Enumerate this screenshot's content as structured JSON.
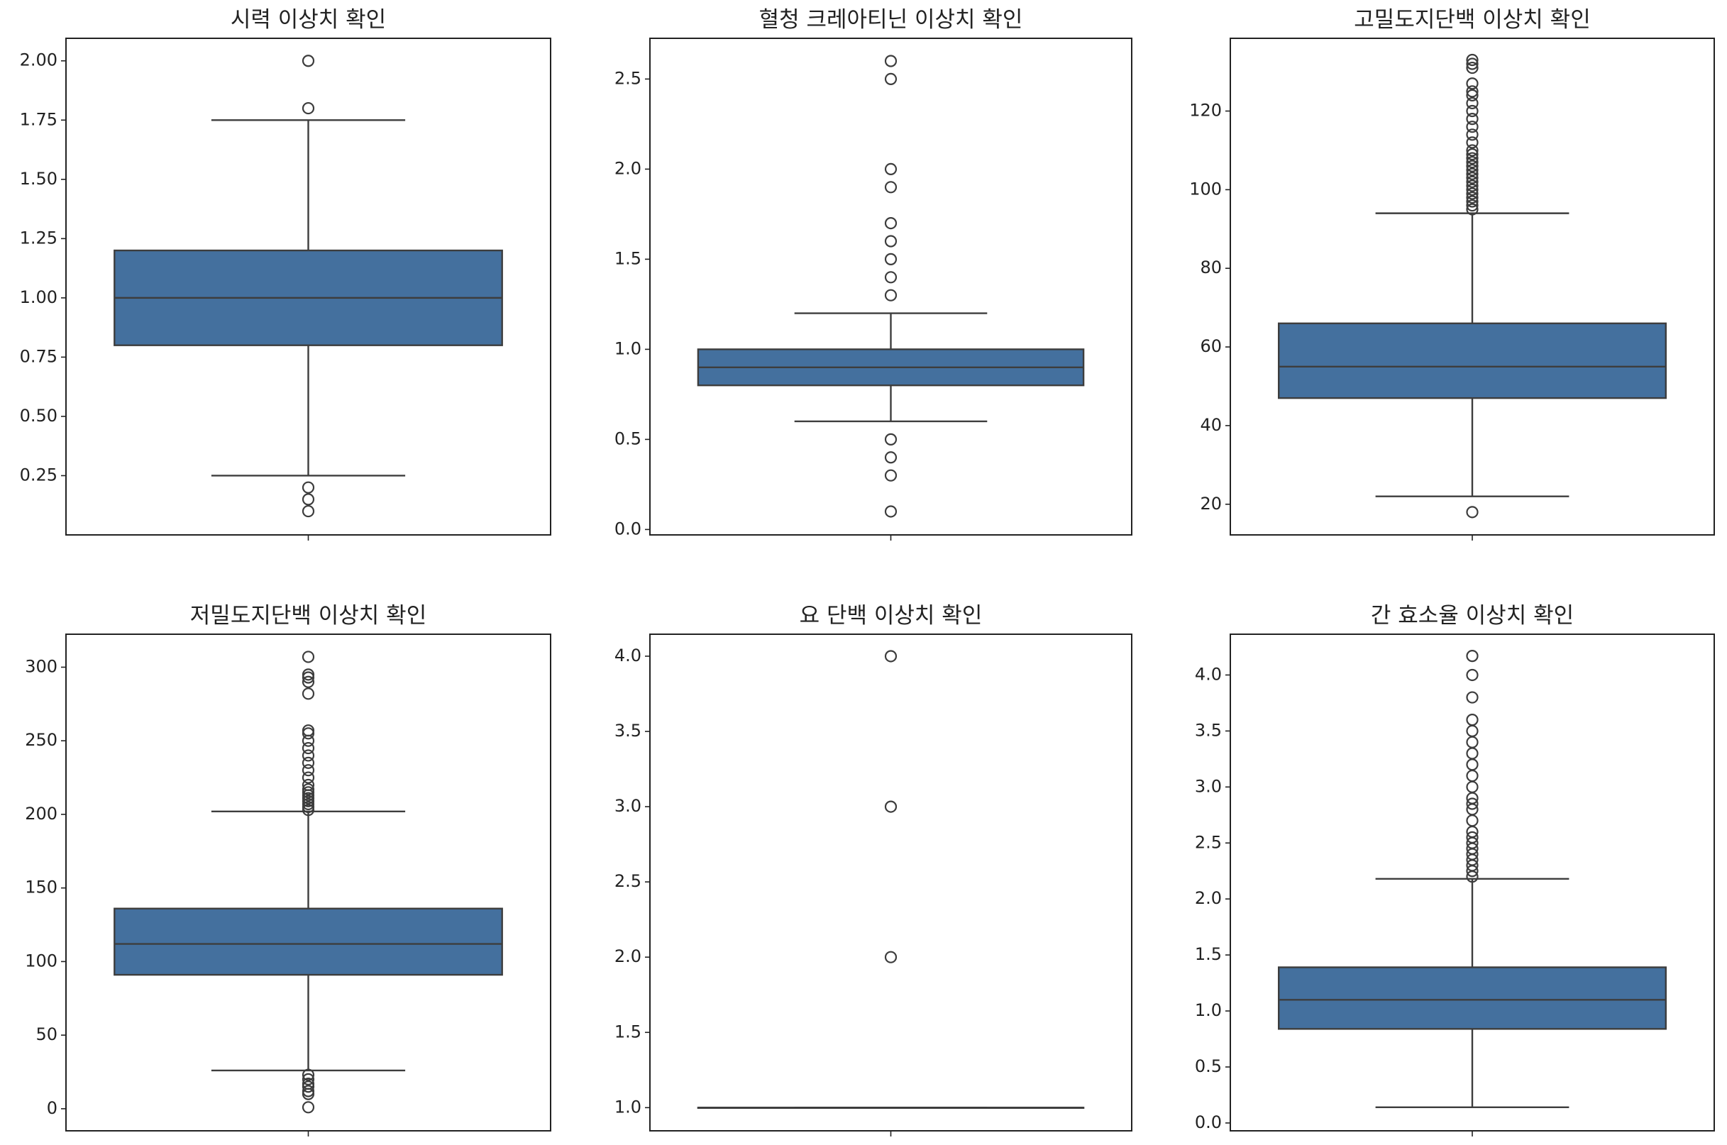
{
  "style": {
    "box_color": "#44709e",
    "line_color": "#3d3d3d",
    "axis_color": "#222222"
  },
  "chart_data": [
    {
      "type": "box",
      "title": "시력 이상치 확인",
      "ylim": [
        0.0,
        2.095
      ],
      "yticks": [
        0.25,
        0.5,
        0.75,
        1.0,
        1.25,
        1.5,
        1.75,
        2.0
      ],
      "ytick_labels": [
        "0.25",
        "0.50",
        "0.75",
        "1.00",
        "1.25",
        "1.50",
        "1.75",
        "2.00"
      ],
      "q1": 0.8,
      "median": 1.0,
      "q3": 1.2,
      "whisker_low": 0.25,
      "whisker_high": 1.75,
      "outliers": [
        2.0,
        1.8,
        0.2,
        0.15,
        0.1
      ]
    },
    {
      "type": "box",
      "title": "혈청 크레아티닌 이상치 확인",
      "ylim": [
        -0.03,
        2.726
      ],
      "yticks": [
        0.0,
        0.5,
        1.0,
        1.5,
        2.0,
        2.5
      ],
      "ytick_labels": [
        "0.0",
        "0.5",
        "1.0",
        "1.5",
        "2.0",
        "2.5"
      ],
      "q1": 0.8,
      "median": 0.9,
      "q3": 1.0,
      "whisker_low": 0.6,
      "whisker_high": 1.2,
      "outliers": [
        2.6,
        2.5,
        2.0,
        1.9,
        1.7,
        1.6,
        1.5,
        1.4,
        1.3,
        0.5,
        0.4,
        0.3,
        0.1
      ]
    },
    {
      "type": "box",
      "title": "고밀도지단백 이상치 확인",
      "ylim": [
        12.2,
        138.5
      ],
      "yticks": [
        20,
        40,
        60,
        80,
        100,
        120
      ],
      "ytick_labels": [
        "20",
        "40",
        "60",
        "80",
        "100",
        "120"
      ],
      "q1": 47,
      "median": 55,
      "q3": 66,
      "whisker_low": 22,
      "whisker_high": 94,
      "outliers": [
        18,
        95,
        96,
        97,
        98,
        99,
        100,
        101,
        102,
        103,
        104,
        105,
        106,
        107,
        108,
        109,
        110,
        112,
        114,
        116,
        118,
        120,
        122,
        124,
        125,
        127,
        131,
        132,
        133
      ]
    },
    {
      "type": "box",
      "title": "저밀도지단백 이상치 확인",
      "ylim": [
        -15,
        322.4
      ],
      "yticks": [
        0,
        50,
        100,
        150,
        200,
        250,
        300
      ],
      "ytick_labels": [
        "0",
        "50",
        "100",
        "150",
        "200",
        "250",
        "300"
      ],
      "q1": 91,
      "median": 112,
      "q3": 136,
      "whisker_low": 26,
      "whisker_high": 202,
      "outliers": [
        1,
        10,
        12,
        15,
        17,
        20,
        23,
        203,
        205,
        207,
        209,
        211,
        213,
        215,
        217,
        220,
        225,
        230,
        235,
        240,
        245,
        250,
        255,
        257,
        282,
        290,
        293,
        295,
        307
      ]
    },
    {
      "type": "box",
      "title": "요 단백 이상치 확인",
      "ylim": [
        0.846,
        4.146
      ],
      "yticks": [
        1.0,
        1.5,
        2.0,
        2.5,
        3.0,
        3.5,
        4.0
      ],
      "ytick_labels": [
        "1.0",
        "1.5",
        "2.0",
        "2.5",
        "3.0",
        "3.5",
        "4.0"
      ],
      "q1": 1.0,
      "median": 1.0,
      "q3": 1.0,
      "whisker_low": 1.0,
      "whisker_high": 1.0,
      "outliers": [
        2.0,
        3.0,
        4.0
      ]
    },
    {
      "type": "box",
      "title": "간 효소율 이상치 확인",
      "ylim": [
        -0.07,
        4.364
      ],
      "yticks": [
        0.0,
        0.5,
        1.0,
        1.5,
        2.0,
        2.5,
        3.0,
        3.5,
        4.0
      ],
      "ytick_labels": [
        "0.0",
        "0.5",
        "1.0",
        "1.5",
        "2.0",
        "2.5",
        "3.0",
        "3.5",
        "4.0"
      ],
      "q1": 0.84,
      "median": 1.1,
      "q3": 1.39,
      "whisker_low": 0.14,
      "whisker_high": 2.18,
      "outliers": [
        2.2,
        2.25,
        2.3,
        2.35,
        2.4,
        2.45,
        2.5,
        2.55,
        2.6,
        2.7,
        2.8,
        2.85,
        2.9,
        3.0,
        3.1,
        3.2,
        3.3,
        3.4,
        3.5,
        3.6,
        3.8,
        4.0,
        4.17
      ]
    }
  ]
}
